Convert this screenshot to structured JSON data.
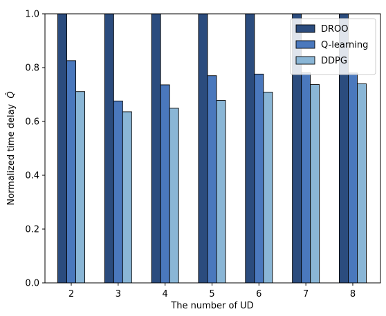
{
  "chart_data": {
    "type": "bar",
    "title": "",
    "xlabel": "The number of UD",
    "ylabel": "Normalized time delay",
    "ylabel_symbol": "Q̂",
    "categories": [
      "2",
      "3",
      "4",
      "5",
      "6",
      "7",
      "8"
    ],
    "series": [
      {
        "name": "DROO",
        "color": "#2b4c7e",
        "values": [
          1.0,
          1.0,
          1.0,
          1.0,
          1.0,
          1.0,
          1.0
        ]
      },
      {
        "name": "Q-learning",
        "color": "#4a78bd",
        "values": [
          0.826,
          0.676,
          0.736,
          0.77,
          0.776,
          0.781,
          0.78
        ]
      },
      {
        "name": "DDPG",
        "color": "#8ab6d6",
        "values": [
          0.711,
          0.636,
          0.649,
          0.678,
          0.709,
          0.737,
          0.74
        ]
      }
    ],
    "ylim": [
      0.0,
      1.0
    ],
    "yticks": [
      "0.0",
      "0.2",
      "0.4",
      "0.6",
      "0.8",
      "1.0"
    ],
    "legend_position": "top-right",
    "grid": false
  }
}
